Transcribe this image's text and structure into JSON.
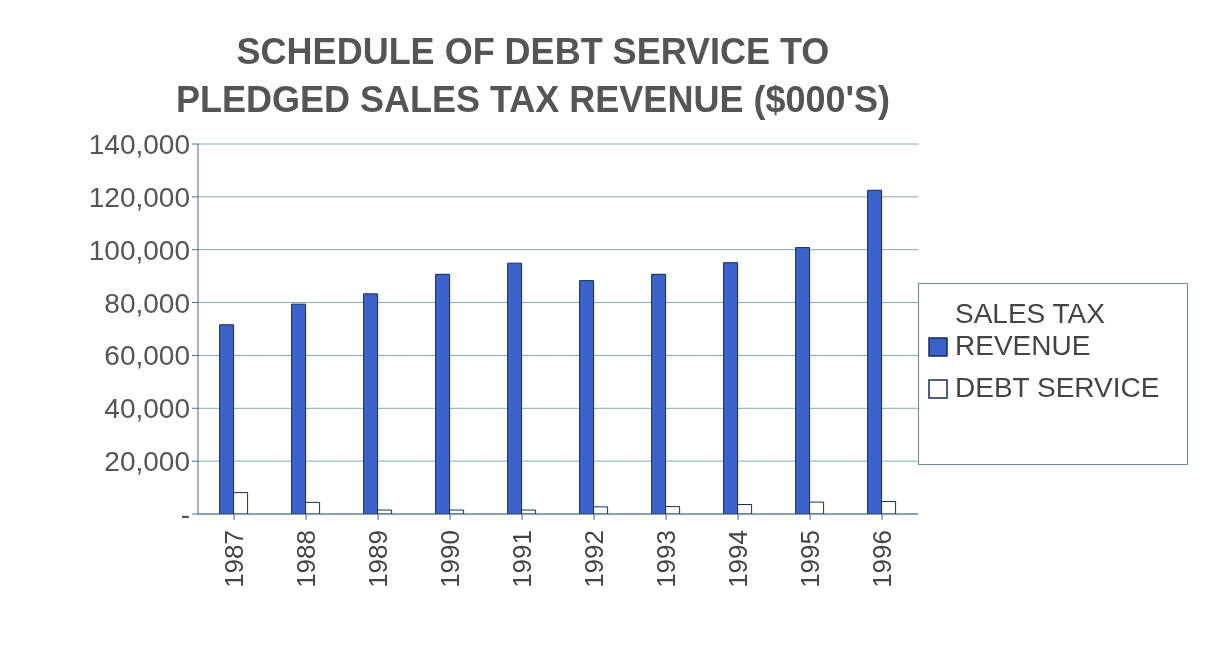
{
  "chart_data": {
    "type": "bar",
    "title": "SCHEDULE OF DEBT SERVICE TO PLEDGED SALES TAX REVENUE ($000'S)",
    "categories": [
      "1987",
      "1988",
      "1989",
      "1990",
      "1991",
      "1992",
      "1993",
      "1994",
      "1995",
      "1996"
    ],
    "series": [
      {
        "name": "SALES TAX REVENUE",
        "color": "#3a62c9",
        "values": [
          71600,
          79400,
          83300,
          90700,
          94900,
          88300,
          90700,
          95100,
          100800,
          122500
        ]
      },
      {
        "name": "DEBT SERVICE",
        "color": "#ffffff",
        "values": [
          8100,
          4400,
          1500,
          1500,
          1500,
          2700,
          2800,
          3600,
          4500,
          4700
        ]
      }
    ],
    "ylim": [
      0,
      140000
    ],
    "yticks": [
      {
        "value": 0,
        "label": "-"
      },
      {
        "value": 20000,
        "label": "20,000"
      },
      {
        "value": 40000,
        "label": "40,000"
      },
      {
        "value": 60000,
        "label": "60,000"
      },
      {
        "value": 80000,
        "label": "80,000"
      },
      {
        "value": 100000,
        "label": "100,000"
      },
      {
        "value": 120000,
        "label": "120,000"
      },
      {
        "value": 140000,
        "label": "140,000"
      }
    ],
    "grid": "y",
    "legend": "right"
  }
}
